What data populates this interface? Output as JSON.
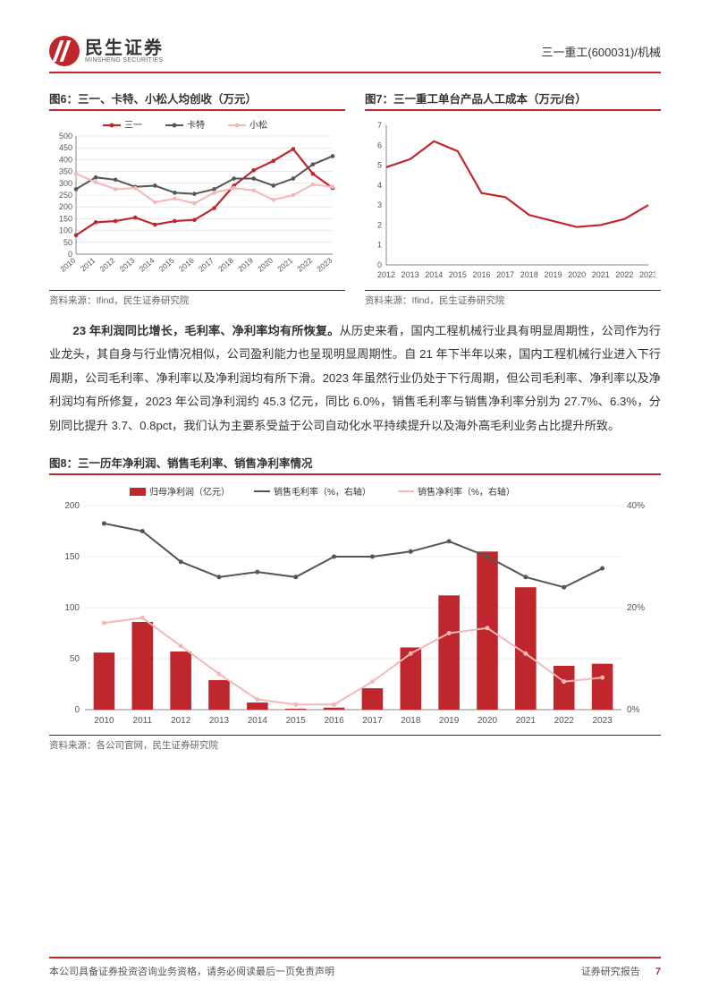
{
  "header": {
    "logo_cn": "民生证券",
    "logo_en": "MINSHENG SECURITIES",
    "right": "三一重工(600031)/机械"
  },
  "chart6": {
    "title": "图6：三一、卡特、小松人均创收（万元）",
    "source": "资料来源：Ifind，民生证券研究院",
    "type": "line",
    "years": [
      "2010",
      "2011",
      "2012",
      "2013",
      "2014",
      "2015",
      "2016",
      "2017",
      "2018",
      "2019",
      "2020",
      "2021",
      "2022",
      "2023"
    ],
    "ylim": [
      0,
      500
    ],
    "ytick_step": 50,
    "series": [
      {
        "name": "三一",
        "color": "#c0272d",
        "width": 2.2,
        "marker": true,
        "values": [
          80,
          135,
          140,
          155,
          125,
          140,
          145,
          195,
          290,
          355,
          395,
          445,
          340,
          280
        ]
      },
      {
        "name": "卡特",
        "color": "#555555",
        "width": 2,
        "marker": true,
        "values": [
          275,
          325,
          315,
          285,
          290,
          260,
          255,
          275,
          320,
          320,
          290,
          320,
          380,
          415
        ]
      },
      {
        "name": "小松",
        "color": "#f4b6b6",
        "width": 2,
        "marker": true,
        "values": [
          340,
          305,
          275,
          280,
          220,
          235,
          215,
          260,
          280,
          270,
          230,
          250,
          295,
          285
        ]
      }
    ]
  },
  "chart7": {
    "title": "图7：三一重工单台产品人工成本（万元/台）",
    "source": "资料来源：Ifind，民生证券研究院",
    "type": "line",
    "years": [
      "2012",
      "2013",
      "2014",
      "2015",
      "2016",
      "2017",
      "2018",
      "2019",
      "2020",
      "2021",
      "2022",
      "2023"
    ],
    "ylim": [
      0,
      7
    ],
    "ytick_step": 1,
    "series": [
      {
        "name": "",
        "color": "#c0272d",
        "width": 2.2,
        "marker": false,
        "values": [
          4.9,
          5.3,
          6.2,
          5.7,
          3.6,
          3.4,
          2.5,
          2.2,
          1.9,
          2.0,
          2.3,
          3.0
        ]
      }
    ]
  },
  "body": {
    "lead": "23 年利润同比增长，毛利率、净利率均有所恢复。",
    "rest": "从历史来看，国内工程机械行业具有明显周期性，公司作为行业龙头，其自身与行业情况相似，公司盈利能力也呈现明显周期性。自 21 年下半年以来，国内工程机械行业进入下行周期，公司毛利率、净利率以及净利润均有所下滑。2023 年虽然行业仍处于下行周期，但公司毛利率、净利率以及净利润均有所修复，2023 年公司净利润约 45.3 亿元，同比 6.0%，销售毛利率与销售净利率分别为 27.7%、6.3%，分别同比提升 3.7、0.8pct，我们认为主要系受益于公司自动化水平持续提升以及海外高毛利业务占比提升所致。"
  },
  "chart8": {
    "title": "图8：三一历年净利润、销售毛利率、销售净利率情况",
    "source": "资料来源：各公司官网，民生证券研究院",
    "type": "combo",
    "years": [
      "2010",
      "2011",
      "2012",
      "2013",
      "2014",
      "2015",
      "2016",
      "2017",
      "2018",
      "2019",
      "2020",
      "2021",
      "2022",
      "2023"
    ],
    "ylim_left": [
      0,
      200
    ],
    "ytick_left": 50,
    "ylim_right": [
      0,
      40
    ],
    "ytick_right": 20,
    "legend": [
      "归母净利润（亿元）",
      "销售毛利率（%，右轴）",
      "销售净利率（%，右轴）"
    ],
    "bars": {
      "color": "#c0272d",
      "values": [
        56,
        86,
        57,
        29,
        7,
        1,
        2,
        21,
        61,
        112,
        155,
        120,
        43,
        45
      ]
    },
    "line_gross": {
      "color": "#555555",
      "width": 2,
      "values": [
        36.5,
        35,
        29,
        26,
        27,
        26,
        30,
        30,
        31,
        33,
        30,
        26,
        24,
        27.7
      ]
    },
    "line_net": {
      "color": "#f4b6b6",
      "width": 2,
      "values": [
        17,
        18,
        12.5,
        7,
        2,
        1,
        1,
        5.5,
        11,
        15,
        16,
        11,
        5.5,
        6.3
      ]
    }
  },
  "footer": {
    "left": "本公司具备证券投资咨询业务资格，请务必阅读最后一页免责声明",
    "right": "证券研究报告",
    "page": "7"
  }
}
